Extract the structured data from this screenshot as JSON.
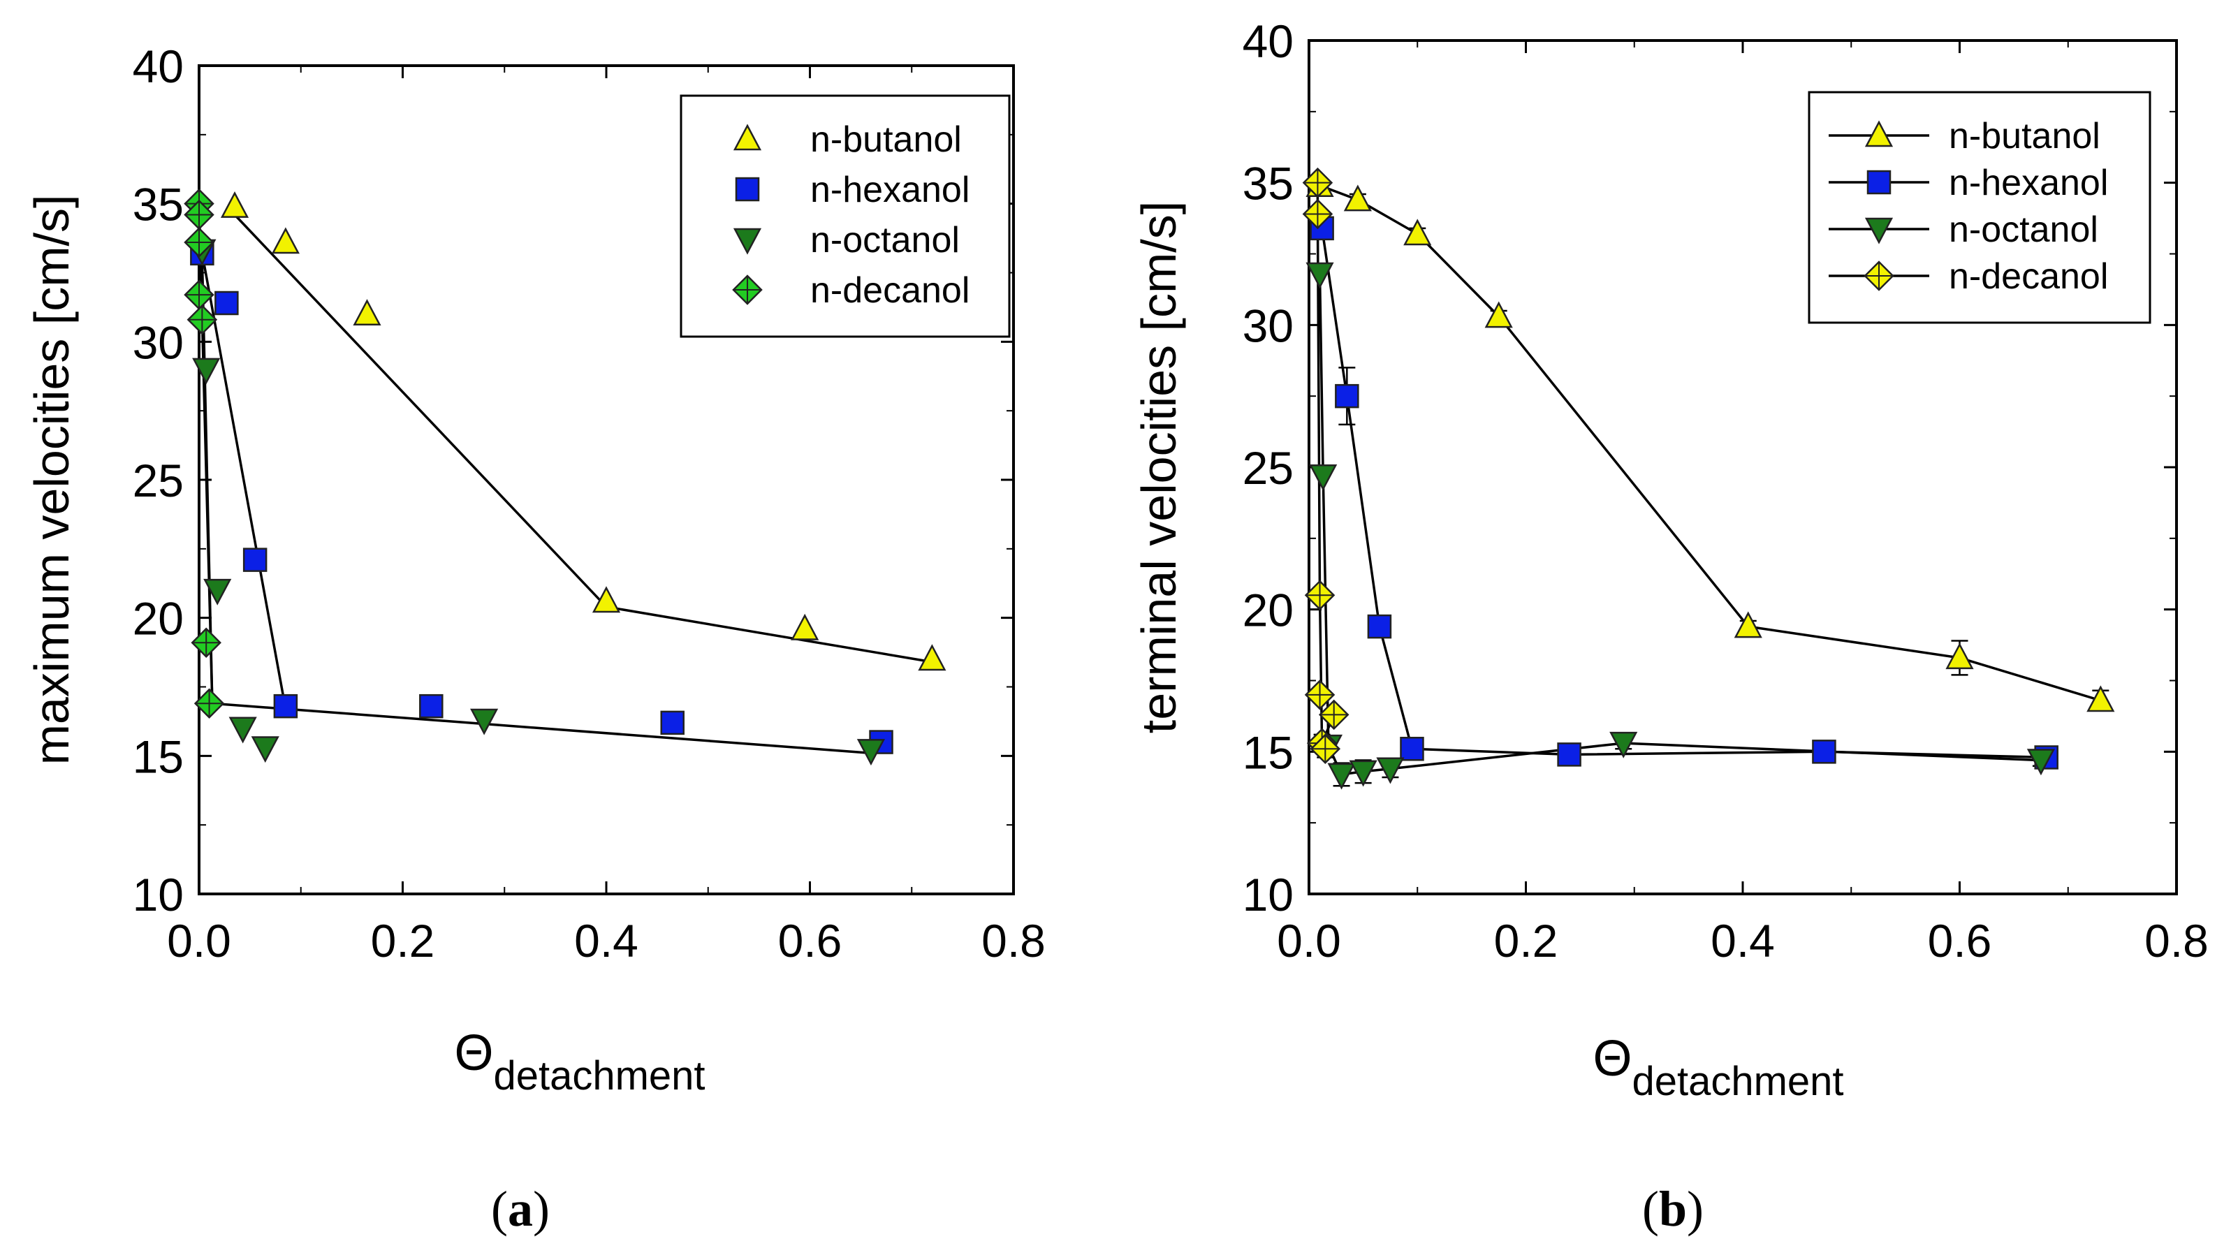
{
  "chart_data": [
    {
      "type": "scatter",
      "panel": "a",
      "caption_letter": "a",
      "ylabel": "maximum velocities [cm/s]",
      "xlabel_main": "Θ",
      "xlabel_sub": "detachment",
      "xlim": [
        0,
        0.8
      ],
      "ylim": [
        10,
        40
      ],
      "xticks": [
        "0.0",
        "0.2",
        "0.4",
        "0.6",
        "0.8"
      ],
      "yticks": [
        "10",
        "15",
        "20",
        "25",
        "30",
        "35",
        "40"
      ],
      "legend_position": "top-right",
      "series": [
        {
          "name": "n-butanol",
          "marker": "triangle-up",
          "color": "#f2f200",
          "legend_line": false,
          "points": [
            [
              0.035,
              34.9
            ],
            [
              0.085,
              33.6
            ],
            [
              0.165,
              31.0
            ],
            [
              0.4,
              20.6
            ],
            [
              0.595,
              19.6
            ],
            [
              0.72,
              18.5
            ]
          ]
        },
        {
          "name": "n-hexanol",
          "marker": "square",
          "color": "#0b20e6",
          "legend_line": false,
          "points": [
            [
              0.003,
              33.2
            ],
            [
              0.027,
              31.4
            ],
            [
              0.055,
              22.1
            ],
            [
              0.085,
              16.8
            ],
            [
              0.228,
              16.8
            ],
            [
              0.465,
              16.2
            ],
            [
              0.67,
              15.5
            ]
          ]
        },
        {
          "name": "n-octanol",
          "marker": "triangle-down",
          "color": "#1c7a1c",
          "legend_line": false,
          "points": [
            [
              0.003,
              33.3
            ],
            [
              0.007,
              29.0
            ],
            [
              0.018,
              21.0
            ],
            [
              0.043,
              16.0
            ],
            [
              0.065,
              15.3
            ],
            [
              0.28,
              16.3
            ],
            [
              0.66,
              15.2
            ]
          ]
        },
        {
          "name": "n-decanol",
          "marker": "diamond-cross",
          "color": "#22cc22",
          "legend_line": false,
          "points": [
            [
              0.0,
              35.0
            ],
            [
              0.0,
              34.6
            ],
            [
              0.0,
              33.6
            ],
            [
              0.0,
              31.7
            ],
            [
              0.003,
              30.8
            ],
            [
              0.007,
              19.1
            ],
            [
              0.01,
              16.9
            ]
          ]
        }
      ],
      "fit_lines": [
        {
          "name": "n-butanol",
          "points": [
            [
              0.035,
              34.6
            ],
            [
              0.4,
              20.4
            ],
            [
              0.72,
              18.4
            ]
          ]
        },
        {
          "name": "n-hexanol",
          "points": [
            [
              0.003,
              33.2
            ],
            [
              0.085,
              16.7
            ],
            [
              0.66,
              15.1
            ]
          ]
        },
        {
          "name": "n-octanol",
          "points": [
            [
              0.003,
              33.0
            ],
            [
              0.013,
              16.9
            ]
          ]
        },
        {
          "name": "n-decanol",
          "points": [
            [
              0.0,
              35.0
            ],
            [
              0.013,
              16.9
            ],
            [
              0.085,
              16.7
            ]
          ]
        }
      ]
    },
    {
      "type": "line",
      "panel": "b",
      "caption_letter": "b",
      "ylabel": "terminal velocities [cm/s]",
      "xlabel_main": "Θ",
      "xlabel_sub": "detachment",
      "xlim": [
        0,
        0.8
      ],
      "ylim": [
        10,
        40
      ],
      "xticks": [
        "0.0",
        "0.2",
        "0.4",
        "0.6",
        "0.8"
      ],
      "yticks": [
        "10",
        "15",
        "20",
        "25",
        "30",
        "35",
        "40"
      ],
      "legend_position": "top-right",
      "series": [
        {
          "name": "n-butanol",
          "marker": "triangle-up",
          "color": "#f2f200",
          "legend_line": true,
          "points": [
            [
              0.01,
              34.9
            ],
            [
              0.045,
              34.4
            ],
            [
              0.1,
              33.2
            ],
            [
              0.175,
              30.3
            ],
            [
              0.405,
              19.4
            ],
            [
              0.6,
              18.3
            ],
            [
              0.73,
              16.8
            ]
          ],
          "errors": [
            0,
            0.2,
            0.2,
            0.2,
            0.2,
            0.6,
            0.35
          ]
        },
        {
          "name": "n-hexanol",
          "marker": "square",
          "color": "#0b20e6",
          "legend_line": true,
          "points": [
            [
              0.012,
              33.4
            ],
            [
              0.035,
              27.5
            ],
            [
              0.065,
              19.4
            ],
            [
              0.095,
              15.1
            ],
            [
              0.24,
              14.9
            ],
            [
              0.475,
              15.0
            ],
            [
              0.68,
              14.8
            ]
          ],
          "errors": [
            0,
            1.0,
            0,
            0,
            0,
            0,
            0
          ]
        },
        {
          "name": "n-octanol",
          "marker": "triangle-down",
          "color": "#1c7a1c",
          "legend_line": true,
          "points": [
            [
              0.01,
              31.8
            ],
            [
              0.013,
              24.7
            ],
            [
              0.018,
              15.2
            ],
            [
              0.03,
              14.2
            ],
            [
              0.05,
              14.3
            ],
            [
              0.075,
              14.4
            ],
            [
              0.29,
              15.3
            ],
            [
              0.675,
              14.7
            ]
          ],
          "errors": [
            0,
            0,
            0,
            0.4,
            0.4,
            0.3,
            0.2,
            0.2
          ]
        },
        {
          "name": "n-decanol",
          "marker": "diamond-cross",
          "color": "#f2f200",
          "legend_line": true,
          "points": [
            [
              0.008,
              35.0
            ],
            [
              0.008,
              33.9
            ],
            [
              0.01,
              20.5
            ],
            [
              0.01,
              17.0
            ],
            [
              0.012,
              15.3
            ],
            [
              0.015,
              15.1
            ],
            [
              0.023,
              16.3
            ]
          ],
          "errors": [
            0,
            0,
            0,
            0,
            0.3,
            0.3,
            0.2
          ]
        }
      ],
      "connect_lines": [
        {
          "name": "n-butanol",
          "points": [
            [
              0.01,
              34.9
            ],
            [
              0.045,
              34.4
            ],
            [
              0.1,
              33.2
            ],
            [
              0.175,
              30.3
            ],
            [
              0.405,
              19.4
            ],
            [
              0.6,
              18.3
            ],
            [
              0.73,
              16.8
            ]
          ]
        },
        {
          "name": "n-hexanol",
          "points": [
            [
              0.012,
              33.4
            ],
            [
              0.035,
              27.5
            ],
            [
              0.065,
              19.4
            ],
            [
              0.095,
              15.1
            ],
            [
              0.24,
              14.9
            ],
            [
              0.475,
              15.0
            ],
            [
              0.68,
              14.8
            ]
          ]
        },
        {
          "name": "n-octanol",
          "points": [
            [
              0.01,
              31.8
            ],
            [
              0.013,
              24.7
            ],
            [
              0.018,
              15.2
            ],
            [
              0.03,
              14.2
            ],
            [
              0.05,
              14.3
            ],
            [
              0.075,
              14.4
            ],
            [
              0.29,
              15.3
            ],
            [
              0.675,
              14.7
            ]
          ]
        },
        {
          "name": "n-decanol",
          "points": [
            [
              0.008,
              35.0
            ],
            [
              0.008,
              33.9
            ],
            [
              0.01,
              20.5
            ],
            [
              0.012,
              15.3
            ],
            [
              0.023,
              16.3
            ]
          ]
        }
      ]
    }
  ]
}
